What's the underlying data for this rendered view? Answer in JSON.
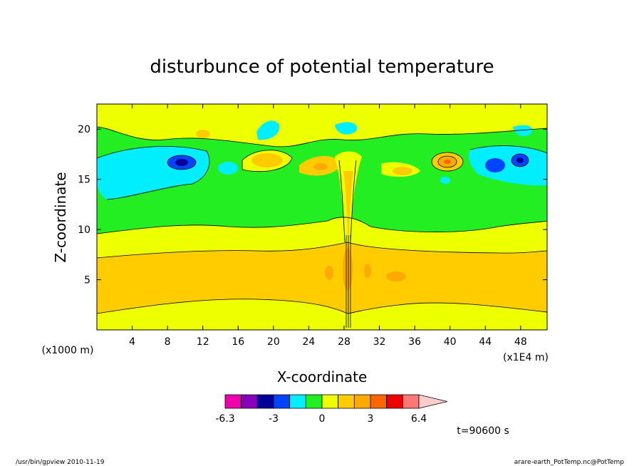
{
  "chart_data": {
    "type": "heatmap",
    "title": "disturbunce of potential temperature",
    "xlabel": "X-coordinate",
    "ylabel": "Z-coordinate",
    "x_unit_label": "(x1E4 m)",
    "y_unit_label": "(x1000 m)",
    "xlim": [
      0,
      51
    ],
    "ylim": [
      0,
      22.5
    ],
    "x_ticks": [
      4,
      8,
      12,
      16,
      20,
      24,
      28,
      32,
      36,
      40,
      44,
      48
    ],
    "y_ticks": [
      5,
      10,
      15,
      20
    ],
    "colorbar": {
      "colors": [
        "#ee00aa",
        "#8800bb",
        "#000099",
        "#0044ff",
        "#00eeff",
        "#22ee22",
        "#eeff00",
        "#ffcc00",
        "#ffaa00",
        "#ff6600",
        "#ee0000",
        "#ff7777",
        "#ffcccc"
      ],
      "tick_labels": [
        "-6.3",
        "-3",
        "0",
        "3",
        "6.4"
      ]
    },
    "layers_z": [
      {
        "z0": 0.0,
        "z1": 1.2,
        "value": "0..1"
      },
      {
        "z0": 1.2,
        "z1": 2.3,
        "value": "1..1.5"
      },
      {
        "z0": 2.3,
        "z1": 7.8,
        "value": "1.5..2"
      },
      {
        "z0": 7.8,
        "z1": 10.2,
        "value": "1..1.5"
      },
      {
        "z0": 10.2,
        "z1": 14.0,
        "value": "0..1"
      },
      {
        "z0": 14.0,
        "z1": 22.5,
        "value": "mixed"
      }
    ]
  },
  "footer": {
    "time": "t=90600 s",
    "left": "/usr/bin/gpview   2010-11-19",
    "right": "arare-earth_PotTemp.nc@PotTemp"
  }
}
